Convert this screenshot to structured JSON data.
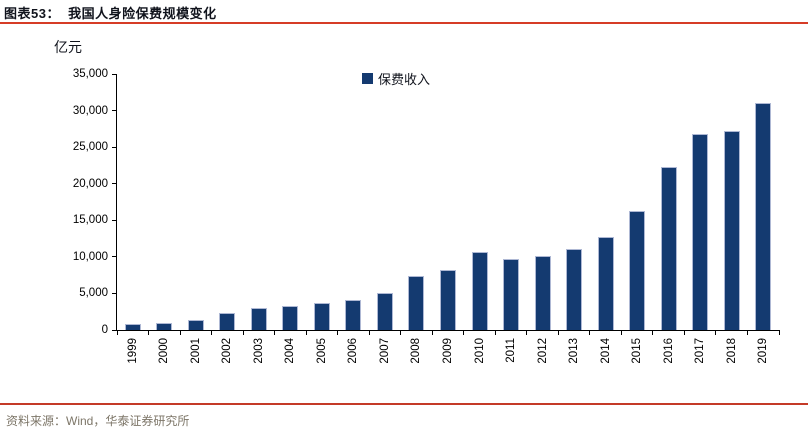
{
  "header": {
    "title": "图表53：  我国人身险保费规模变化"
  },
  "footer": {
    "source": "资料来源：Wind，华泰证券研究所"
  },
  "colors": {
    "bar_fill": "#143A70",
    "bar_edge": "#aeb8d4",
    "accent_red_top": "#d63c26",
    "accent_red_bottom": "#c43a28",
    "source_text": "#7d7668",
    "axis": "#000000"
  },
  "chart_data": {
    "type": "bar",
    "title": "我国人身险保费规模变化",
    "unit_label": "亿元",
    "legend": [
      "保费收入"
    ],
    "categories": [
      "1999",
      "2000",
      "2001",
      "2002",
      "2003",
      "2004",
      "2005",
      "2006",
      "2007",
      "2008",
      "2009",
      "2010",
      "2011",
      "2012",
      "2013",
      "2014",
      "2015",
      "2016",
      "2017",
      "2018",
      "2019"
    ],
    "series": [
      {
        "name": "保费收入",
        "values": [
          872,
          997,
          1424,
          2275,
          3011,
          3228,
          3697,
          4132,
          5038,
          7447,
          8261,
          10632,
          9700,
          10157,
          11010,
          12690,
          16288,
          22235,
          26746,
          27247,
          30995
        ]
      }
    ],
    "xlabel": "",
    "ylabel": "亿元",
    "ylim": [
      0,
      35000
    ],
    "grid": false,
    "legend_position": "top-center",
    "yticks": [
      {
        "value": 0,
        "label": "0"
      },
      {
        "value": 5000,
        "label": "5,000"
      },
      {
        "value": 10000,
        "label": "10,000"
      },
      {
        "value": 15000,
        "label": "15,000"
      },
      {
        "value": 20000,
        "label": "20,000"
      },
      {
        "value": 25000,
        "label": "25,000"
      },
      {
        "value": 30000,
        "label": "30,000"
      },
      {
        "value": 35000,
        "label": "35,000"
      }
    ]
  }
}
